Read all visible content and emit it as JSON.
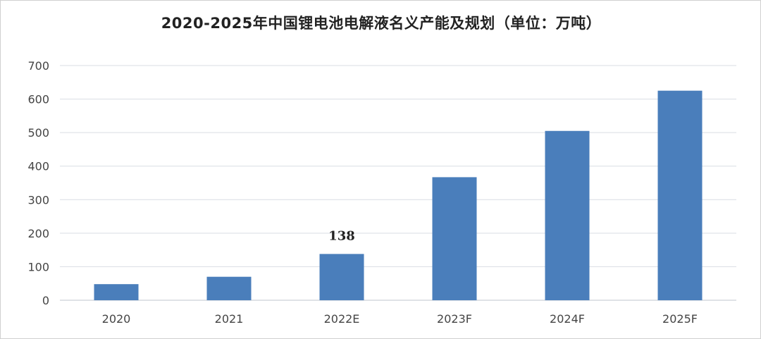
{
  "chart_data": {
    "type": "bar",
    "title": "2020-2025年中国锂电池电解液名义产能及规划（单位：万吨）",
    "categories": [
      "2020",
      "2021",
      "2022E",
      "2023F",
      "2024F",
      "2025F"
    ],
    "values": [
      48,
      70,
      138,
      367,
      505,
      625
    ],
    "data_labels": [
      null,
      null,
      "138",
      null,
      null,
      null
    ],
    "ylim": [
      0,
      700
    ],
    "yticks": [
      0,
      100,
      200,
      300,
      400,
      500,
      600,
      700
    ],
    "xlabel": "",
    "ylabel": "",
    "grid": true,
    "legend": "none",
    "bar_color": "#4a7ebb",
    "grid_color": "#d9dde3"
  }
}
